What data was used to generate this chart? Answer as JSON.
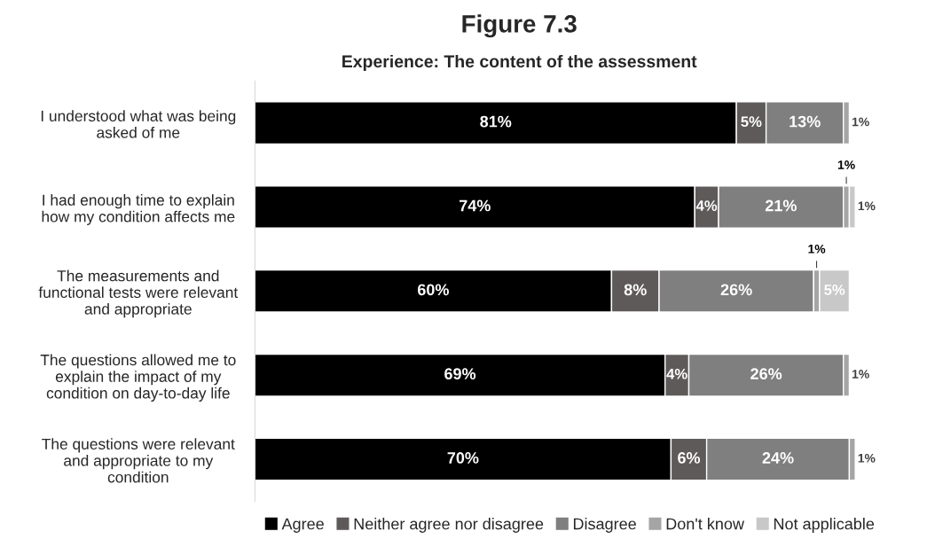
{
  "chart_data": {
    "type": "bar",
    "orientation": "horizontal",
    "stacked": true,
    "title": "Figure 7.3",
    "subtitle": "Experience: The content of the assessment",
    "categories": [
      "I understood what was being\nasked of me",
      "I had enough time to explain\nhow my condition affects me",
      "The measurements and\nfunctional tests were relevant\nand appropriate",
      "The questions allowed me to\nexplain the impact of my\ncondition on day-to-day life",
      "The questions were relevant\nand appropriate to my\ncondition"
    ],
    "series": [
      {
        "name": "Agree",
        "color": "#000000",
        "values": [
          81,
          74,
          60,
          69,
          70
        ],
        "value_labels": [
          "81%",
          "74%",
          "60%",
          "69%",
          "70%"
        ]
      },
      {
        "name": "Neither agree nor disagree",
        "color": "#5f5a5a",
        "values": [
          5,
          4,
          8,
          4,
          6
        ],
        "value_labels": [
          "5%",
          "4%",
          "8%",
          "4%",
          "6%"
        ]
      },
      {
        "name": "Disagree",
        "color": "#7f7f7f",
        "values": [
          13,
          21,
          26,
          26,
          24
        ],
        "value_labels": [
          "13%",
          "21%",
          "26%",
          "26%",
          "24%"
        ]
      },
      {
        "name": "Don't know",
        "color": "#a5a5a5",
        "values": [
          1,
          1,
          1,
          1,
          1
        ],
        "value_labels": [
          "1%",
          "1%",
          "1%",
          "1%",
          "1%"
        ]
      },
      {
        "name": "Not applicable",
        "color": "#c8c8c8",
        "values": [
          null,
          1,
          5,
          null,
          null
        ],
        "value_labels": [
          null,
          "1%",
          "5%",
          null,
          null
        ]
      }
    ],
    "legend": "bottom",
    "grid": false
  }
}
